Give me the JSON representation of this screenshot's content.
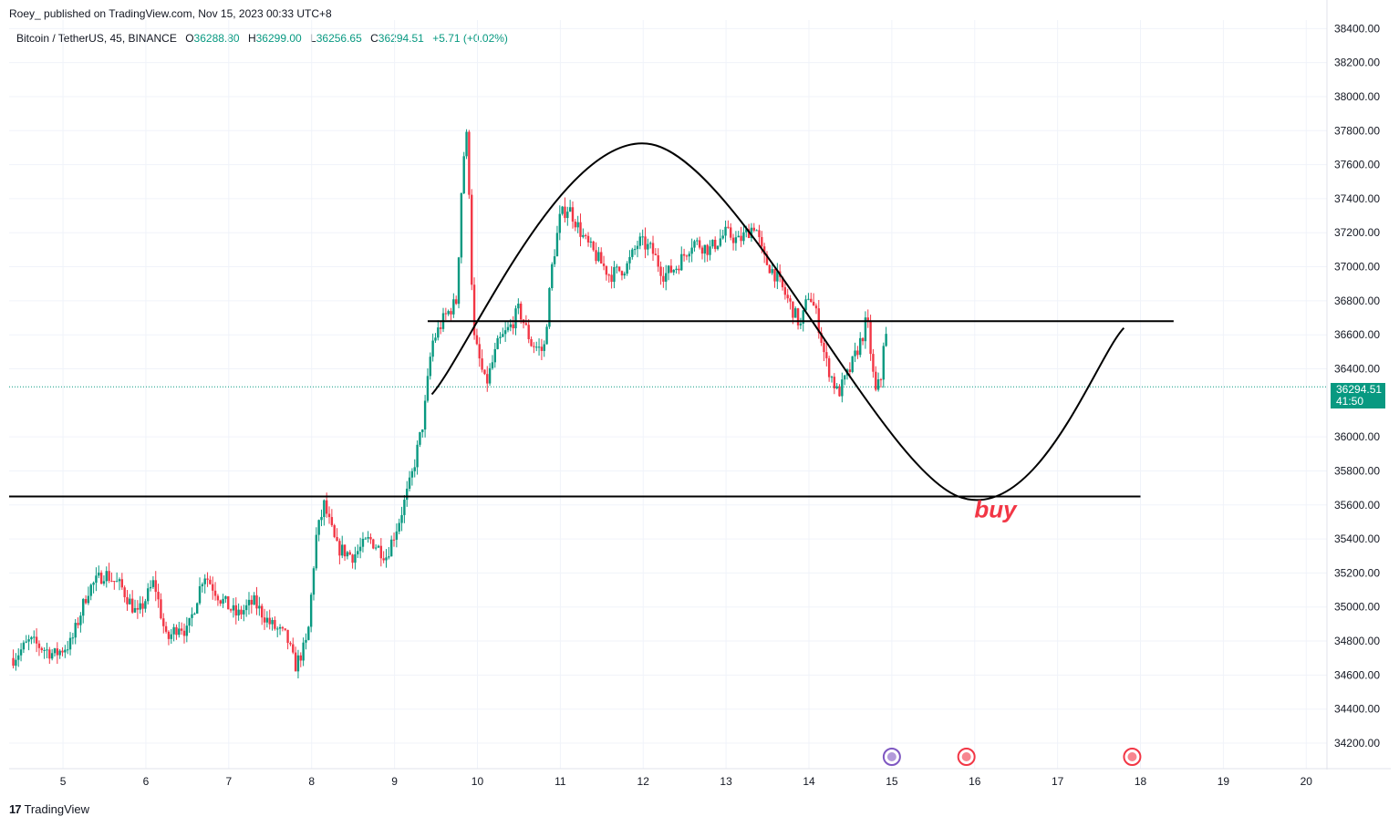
{
  "header": {
    "publisher_line": "Roey_  published on TradingView.com, Nov 15, 2023 00:33 UTC+8"
  },
  "legend": {
    "symbol": "Bitcoin / TetherUS, 45, BINANCE",
    "open_label": "O",
    "open": "36288.80",
    "high_label": "H",
    "high": "36299.00",
    "low_label": "L",
    "low": "36256.65",
    "close_label": "C",
    "close": "36294.51",
    "change": "+5.71 (+0.02%)"
  },
  "price_label": {
    "price": "36294.51",
    "countdown": "41:50"
  },
  "footer": {
    "brand": "TradingView",
    "logo": "17"
  },
  "colors": {
    "up": "#089981",
    "down": "#f23645",
    "grid": "#f0f3fa",
    "annotation": "#000000",
    "buy_text": "#f23645"
  },
  "chart_data": {
    "type": "candlestick",
    "symbol": "Bitcoin / TetherUS",
    "interval": "45",
    "exchange": "BINANCE",
    "x_ticks": [
      "5",
      "6",
      "7",
      "8",
      "9",
      "10",
      "11",
      "12",
      "13",
      "14",
      "15",
      "16",
      "17",
      "18",
      "19",
      "20"
    ],
    "x_tick_days": [
      5,
      6,
      7,
      8,
      9,
      10,
      11,
      12,
      13,
      14,
      15,
      16,
      17,
      18,
      19,
      20
    ],
    "y_ticks": [
      34200,
      34400,
      34600,
      34800,
      35000,
      35200,
      35400,
      35600,
      35800,
      36000,
      36400,
      36600,
      36800,
      37000,
      37200,
      37400,
      37600,
      37800,
      38000,
      38200,
      38400
    ],
    "y_tick_labels": [
      "34200.00",
      "34400.00",
      "34600.00",
      "34800.00",
      "35000.00",
      "35200.00",
      "35400.00",
      "35600.00",
      "35800.00",
      "36000.00",
      "36400.00",
      "36600.00",
      "36800.00",
      "37000.00",
      "37200.00",
      "37400.00",
      "37600.00",
      "37800.00",
      "38000.00",
      "38200.00",
      "38400.00"
    ],
    "ylim": [
      34050,
      38450
    ],
    "xlim_days": [
      4.35,
      20.25
    ],
    "last_price": 36294.51,
    "price_path": [
      [
        4.4,
        34700
      ],
      [
        4.6,
        34800
      ],
      [
        4.9,
        34720
      ],
      [
        5.1,
        34790
      ],
      [
        5.3,
        35100
      ],
      [
        5.5,
        35200
      ],
      [
        5.7,
        35120
      ],
      [
        5.9,
        34950
      ],
      [
        6.1,
        35150
      ],
      [
        6.25,
        34800
      ],
      [
        6.4,
        34900
      ],
      [
        6.5,
        34850
      ],
      [
        6.7,
        35200
      ],
      [
        6.9,
        35050
      ],
      [
        7.1,
        34950
      ],
      [
        7.3,
        35030
      ],
      [
        7.5,
        34900
      ],
      [
        7.7,
        34820
      ],
      [
        7.8,
        34650
      ],
      [
        7.95,
        34800
      ],
      [
        8.05,
        35400
      ],
      [
        8.15,
        35600
      ],
      [
        8.3,
        35350
      ],
      [
        8.5,
        35300
      ],
      [
        8.7,
        35400
      ],
      [
        8.9,
        35300
      ],
      [
        9.05,
        35500
      ],
      [
        9.2,
        35750
      ],
      [
        9.35,
        36100
      ],
      [
        9.45,
        36550
      ],
      [
        9.6,
        36700
      ],
      [
        9.75,
        36800
      ],
      [
        9.82,
        37600
      ],
      [
        9.88,
        37800
      ],
      [
        9.95,
        36600
      ],
      [
        10.1,
        36300
      ],
      [
        10.25,
        36550
      ],
      [
        10.4,
        36650
      ],
      [
        10.5,
        36750
      ],
      [
        10.65,
        36550
      ],
      [
        10.8,
        36500
      ],
      [
        10.9,
        37000
      ],
      [
        11.0,
        37300
      ],
      [
        11.1,
        37350
      ],
      [
        11.2,
        37250
      ],
      [
        11.3,
        37150
      ],
      [
        11.45,
        37050
      ],
      [
        11.6,
        36950
      ],
      [
        11.8,
        37000
      ],
      [
        11.95,
        37150
      ],
      [
        12.1,
        37100
      ],
      [
        12.25,
        36950
      ],
      [
        12.4,
        37000
      ],
      [
        12.6,
        37150
      ],
      [
        12.8,
        37100
      ],
      [
        13.0,
        37200
      ],
      [
        13.15,
        37150
      ],
      [
        13.35,
        37250
      ],
      [
        13.45,
        37050
      ],
      [
        13.6,
        36950
      ],
      [
        13.75,
        36800
      ],
      [
        13.9,
        36650
      ],
      [
        14.0,
        36850
      ],
      [
        14.1,
        36700
      ],
      [
        14.2,
        36450
      ],
      [
        14.35,
        36250
      ],
      [
        14.5,
        36400
      ],
      [
        14.65,
        36600
      ],
      [
        14.7,
        36700
      ],
      [
        14.8,
        36250
      ],
      [
        14.87,
        36350
      ],
      [
        14.92,
        36700
      ],
      [
        14.96,
        36300
      ]
    ],
    "annotations": {
      "upper_horizontal_line": {
        "price": 36680,
        "from_day": 9.4,
        "to_day": 18.4
      },
      "lower_horizontal_line": {
        "price": 35650,
        "from_day": 4.35,
        "to_day": 18.0
      },
      "curve_points": [
        [
          9.45,
          36250
        ],
        [
          12.1,
          37720
        ],
        [
          15.8,
          35650
        ],
        [
          17.8,
          36640
        ]
      ],
      "buy_text": "buy",
      "buy_price": 35580,
      "buy_day": 16.25
    }
  }
}
